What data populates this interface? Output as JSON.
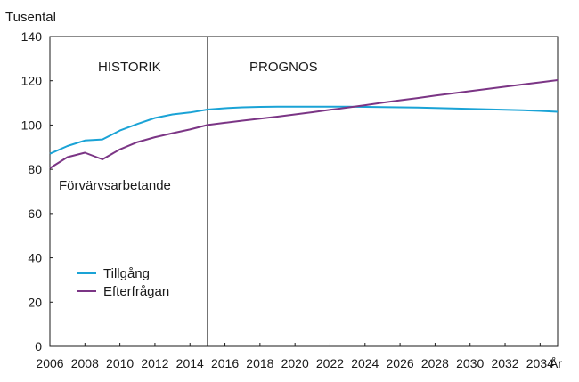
{
  "chart_data": {
    "type": "line",
    "ylabel": "Tusental",
    "xunit": "År",
    "ylim": [
      0,
      140
    ],
    "yticks": [
      0,
      20,
      40,
      60,
      80,
      100,
      120,
      140
    ],
    "xlim": [
      2006,
      2035
    ],
    "xticks": [
      2006,
      2008,
      2010,
      2012,
      2014,
      2016,
      2018,
      2020,
      2022,
      2024,
      2026,
      2028,
      2030,
      2032,
      2034
    ],
    "divider_year": 2015,
    "annotations": {
      "historik": "HISTORIK",
      "prognos": "PROGNOS",
      "group": "Förvärvsarbetande"
    },
    "grid": false,
    "legend_placement": "lower-left",
    "series": [
      {
        "name": "Tillgång",
        "color": "#1aa3d6",
        "x": [
          2006,
          2007,
          2008,
          2009,
          2010,
          2011,
          2012,
          2013,
          2014,
          2015,
          2016,
          2017,
          2018,
          2019,
          2020,
          2021,
          2022,
          2023,
          2024,
          2025,
          2026,
          2027,
          2028,
          2029,
          2030,
          2031,
          2032,
          2033,
          2034,
          2035
        ],
        "y": [
          87,
          90.5,
          93,
          93.5,
          97.5,
          100.5,
          103.2,
          104.8,
          105.7,
          107,
          107.6,
          108,
          108.2,
          108.3,
          108.3,
          108.3,
          108.3,
          108.3,
          108.2,
          108.1,
          108,
          107.9,
          107.7,
          107.5,
          107.3,
          107.1,
          106.9,
          106.7,
          106.4,
          106
        ]
      },
      {
        "name": "Efterfrågan",
        "color": "#7b3585",
        "x": [
          2006,
          2007,
          2008,
          2009,
          2010,
          2011,
          2012,
          2013,
          2014,
          2015,
          2016,
          2017,
          2018,
          2019,
          2020,
          2021,
          2022,
          2023,
          2024,
          2025,
          2026,
          2027,
          2028,
          2029,
          2030,
          2031,
          2032,
          2033,
          2034,
          2035
        ],
        "y": [
          80.5,
          85.5,
          87.5,
          84.5,
          89,
          92.3,
          94.5,
          96.3,
          98,
          100,
          101,
          102,
          102.9,
          103.8,
          104.8,
          105.8,
          106.9,
          107.9,
          109,
          110.1,
          111.2,
          112.2,
          113.3,
          114.3,
          115.3,
          116.3,
          117.3,
          118.3,
          119.3,
          120.3
        ]
      }
    ]
  }
}
